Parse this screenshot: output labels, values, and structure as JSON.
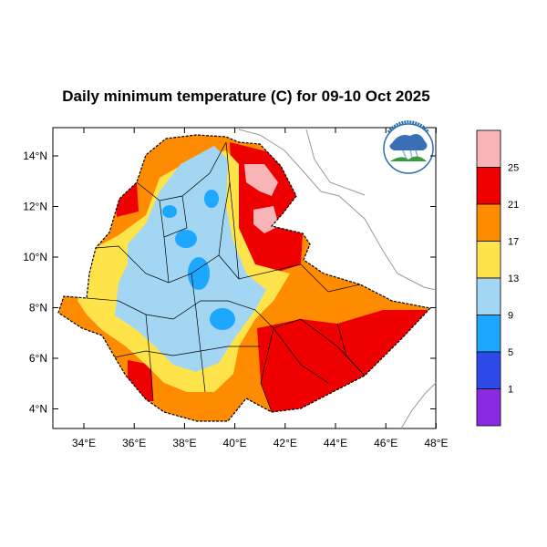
{
  "title": "Daily minimum temperature (C) for 09-10 Oct 2025",
  "axes": {
    "y_ticks": [
      "14°N",
      "12°N",
      "10°N",
      "8°N",
      "6°N",
      "4°N"
    ],
    "x_ticks": [
      "34°E",
      "36°E",
      "38°E",
      "40°E",
      "42°E",
      "44°E",
      "46°E",
      "48°E"
    ]
  },
  "legend": {
    "bins": [
      {
        "color": "#f9b4b8"
      },
      {
        "color": "#ee0000"
      },
      {
        "color": "#ff8c00"
      },
      {
        "color": "#ffe34a"
      },
      {
        "color": "#a3d6f2"
      },
      {
        "color": "#1ea7ff"
      },
      {
        "color": "#2d4ae8"
      },
      {
        "color": "#8a2be2"
      }
    ],
    "labels": [
      "25",
      "21",
      "17",
      "13",
      "9",
      "5",
      "1"
    ]
  },
  "logo": {
    "name": "Ethiopian Meteorology Institute logo"
  }
}
